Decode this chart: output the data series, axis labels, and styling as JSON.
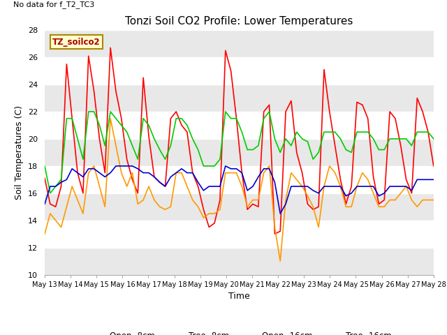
{
  "title": "Tonzi Soil CO2 Profile: Lower Temperatures",
  "subtitle": "No data for f_T2_TC3",
  "xlabel": "Time",
  "ylabel": "Soil Temperatures (C)",
  "ylim": [
    10,
    28
  ],
  "yticks": [
    10,
    12,
    14,
    16,
    18,
    20,
    22,
    24,
    26,
    28
  ],
  "xtick_labels": [
    "May 13",
    "May 14",
    "May 15",
    "May 16",
    "May 17",
    "May 18",
    "May 19",
    "May 20",
    "May 21",
    "May 22",
    "May 23",
    "May 24",
    "May 25",
    "May 26",
    "May 27",
    "May 28"
  ],
  "colors": {
    "open_8cm": "#ff0000",
    "tree_8cm": "#ff9900",
    "open_16cm": "#00cc00",
    "tree_16cm": "#0000cc"
  },
  "legend_label": "TZ_soilco2",
  "open_8cm": [
    17.1,
    15.2,
    15.0,
    16.5,
    25.5,
    21.5,
    17.5,
    16.0,
    26.1,
    23.5,
    20.0,
    17.5,
    26.7,
    23.5,
    21.5,
    18.5,
    17.0,
    16.0,
    24.5,
    20.2,
    17.2,
    16.8,
    16.5,
    21.5,
    22.0,
    21.0,
    20.5,
    17.5,
    16.5,
    14.8,
    13.5,
    13.8,
    15.5,
    26.5,
    25.0,
    21.5,
    17.5,
    14.8,
    15.2,
    15.0,
    22.0,
    22.5,
    13.0,
    13.2,
    22.0,
    22.8,
    19.0,
    17.5,
    15.2,
    14.8,
    15.0,
    25.1,
    22.0,
    19.5,
    17.0,
    15.2,
    16.5,
    22.7,
    22.5,
    21.5,
    17.2,
    15.2,
    15.5,
    22.0,
    21.5,
    19.5,
    17.0,
    16.0,
    23.0,
    22.0,
    20.5,
    18.0
  ],
  "tree_8cm": [
    13.0,
    14.5,
    14.0,
    13.5,
    15.0,
    16.5,
    15.5,
    14.5,
    17.5,
    18.0,
    16.5,
    15.0,
    21.5,
    19.5,
    17.5,
    16.5,
    17.5,
    15.2,
    15.5,
    16.5,
    15.5,
    15.0,
    14.8,
    15.0,
    17.5,
    17.5,
    16.5,
    15.5,
    15.0,
    14.2,
    14.5,
    14.5,
    14.8,
    17.5,
    17.5,
    17.5,
    16.5,
    15.0,
    15.5,
    15.5,
    17.5,
    18.0,
    13.5,
    11.0,
    15.5,
    17.5,
    17.0,
    16.5,
    15.8,
    15.0,
    13.5,
    16.5,
    18.0,
    17.5,
    16.5,
    15.0,
    15.0,
    16.5,
    17.5,
    17.0,
    16.0,
    15.0,
    15.0,
    15.5,
    15.5,
    16.0,
    16.5,
    15.5,
    15.0,
    15.5,
    15.5,
    15.5
  ],
  "open_16cm": [
    18.0,
    16.0,
    16.5,
    17.0,
    21.5,
    21.5,
    20.0,
    18.5,
    22.0,
    22.0,
    21.0,
    19.5,
    22.0,
    21.5,
    21.0,
    20.5,
    19.5,
    18.5,
    21.5,
    21.0,
    20.0,
    19.2,
    18.5,
    19.5,
    21.5,
    21.5,
    21.0,
    20.0,
    19.2,
    18.0,
    18.0,
    18.0,
    18.5,
    22.0,
    21.5,
    21.5,
    20.5,
    19.2,
    19.2,
    19.5,
    21.5,
    22.0,
    20.0,
    19.0,
    20.0,
    19.5,
    20.5,
    20.0,
    19.8,
    18.5,
    19.0,
    20.5,
    20.5,
    20.5,
    20.0,
    19.2,
    19.0,
    20.5,
    20.5,
    20.5,
    20.0,
    19.2,
    19.2,
    20.0,
    20.0,
    20.0,
    20.0,
    19.5,
    20.5,
    20.5,
    20.5,
    20.0
  ],
  "tree_16cm": [
    15.2,
    16.5,
    16.5,
    16.8,
    17.0,
    17.8,
    17.5,
    17.2,
    17.8,
    17.8,
    17.5,
    17.2,
    17.5,
    18.0,
    18.0,
    18.0,
    18.0,
    17.8,
    17.5,
    17.5,
    17.2,
    16.8,
    16.5,
    17.2,
    17.5,
    17.8,
    17.5,
    17.5,
    16.8,
    16.2,
    16.5,
    16.5,
    16.5,
    18.0,
    17.8,
    17.8,
    17.5,
    16.2,
    16.5,
    17.2,
    17.8,
    17.8,
    16.8,
    14.5,
    15.2,
    16.5,
    16.5,
    16.5,
    16.5,
    16.2,
    16.0,
    16.5,
    16.5,
    16.5,
    16.5,
    15.8,
    16.0,
    16.5,
    16.5,
    16.5,
    16.5,
    15.8,
    16.0,
    16.5,
    16.5,
    16.5,
    16.5,
    16.2,
    17.0,
    17.0,
    17.0,
    17.0
  ]
}
